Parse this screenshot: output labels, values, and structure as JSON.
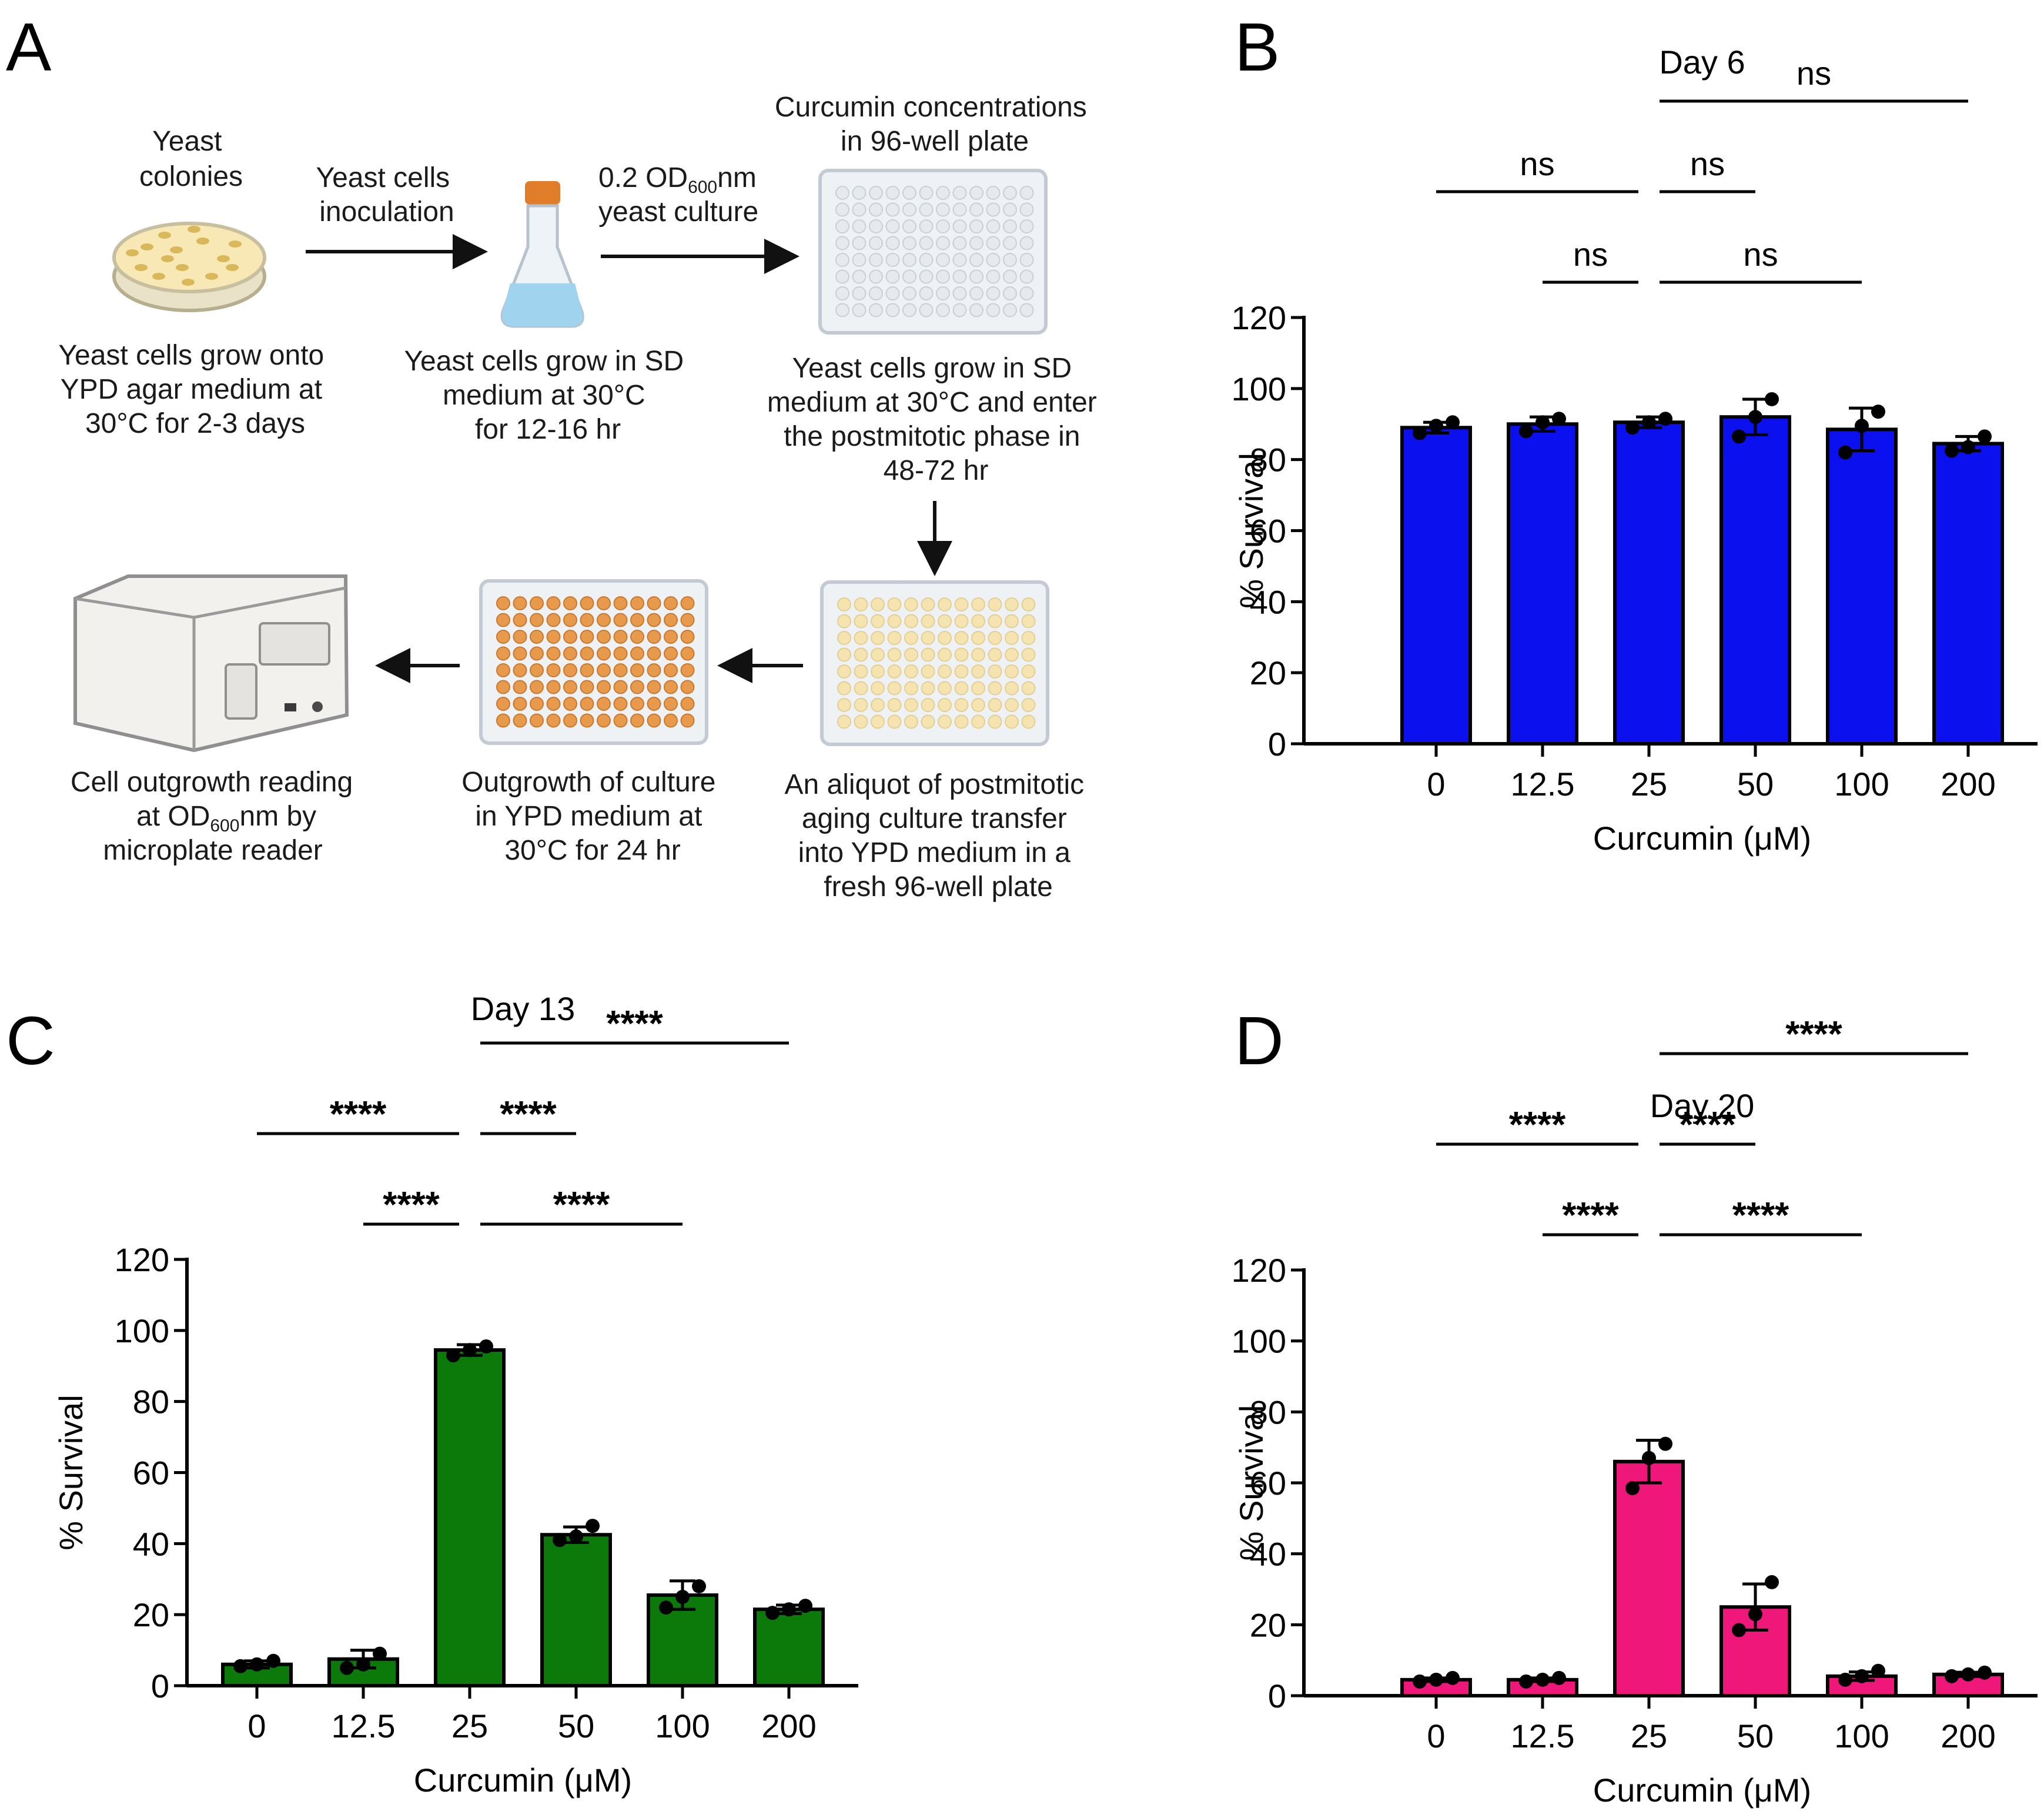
{
  "panel_labels": {
    "A": "A",
    "B": "B",
    "C": "C",
    "D": "D"
  },
  "schematic": {
    "colonies_label": [
      "Yeast",
      "colonies"
    ],
    "colonies_caption": [
      "Yeast cells grow onto",
      "YPD agar medium at",
      "30°C for 2-3 days"
    ],
    "inoculation_label": [
      "Yeast cells",
      "inoculation"
    ],
    "culture_label_line1_main": "0.2 OD",
    "culture_label_line1_sub": "600",
    "culture_label_line1_tail": "nm",
    "culture_label_line2": "yeast culture",
    "flask_caption": [
      "Yeast cells grow in SD",
      "medium at 30°C",
      "for 12-16 hr"
    ],
    "plate_title": [
      "Curcumin concentrations",
      "in 96-well plate"
    ],
    "plate_caption": [
      "Yeast cells grow in SD",
      "medium at 30°C and enter",
      "the postmitotic phase in",
      "48-72 hr"
    ],
    "aliquot_caption": [
      "An aliquot of postmitotic",
      "aging culture transfer",
      "into YPD medium in a",
      "fresh 96-well plate"
    ],
    "outgrowth_caption": [
      "Outgrowth of culture",
      "in YPD medium at",
      "30°C for 24 hr"
    ],
    "reader_caption_line1": "Cell outgrowth reading",
    "reader_caption_line2_main": "at OD",
    "reader_caption_line2_sub": "600",
    "reader_caption_line2_tail": "nm by",
    "reader_caption_line3": "microplate reader",
    "colors": {
      "agar": "#f7e8b5",
      "colony": "#d8b85a",
      "flask_cap": "#e07d2a",
      "liquid": "#9fd3ee",
      "plate_empty": "#c9cfd6",
      "plate_pale": "#f6e4b0",
      "plate_orange": "#e89a4c"
    }
  },
  "chart_data": [
    {
      "panel": "B",
      "type": "bar",
      "title": "Day 6",
      "xlabel": "Curcumin (μM)",
      "ylabel": "% Survival",
      "categories": [
        "0",
        "12.5",
        "25",
        "50",
        "100",
        "200"
      ],
      "values": [
        89,
        90,
        90.5,
        92,
        88.5,
        84.5
      ],
      "sd": [
        1.5,
        2,
        1.5,
        5,
        6,
        2
      ],
      "points": [
        [
          87.5,
          89.5,
          90.5
        ],
        [
          88,
          90.5,
          91.5
        ],
        [
          89,
          90.5,
          91.5
        ],
        [
          86.5,
          92,
          97
        ],
        [
          82,
          89.5,
          93.5
        ],
        [
          82.5,
          83.5,
          86.5
        ]
      ],
      "ylim": [
        0,
        120
      ],
      "yticks": [
        0,
        20,
        40,
        60,
        80,
        100,
        120
      ],
      "color": "#0a10ee",
      "comparisons": [
        {
          "from": "12.5",
          "to": "25",
          "label": "ns"
        },
        {
          "from": "25",
          "to": "50",
          "label": "ns"
        },
        {
          "from": "0",
          "to": "25",
          "label": "ns"
        },
        {
          "from": "25",
          "to": "100",
          "label": "ns"
        },
        {
          "from": "25",
          "to": "200",
          "label": "ns"
        }
      ]
    },
    {
      "panel": "C",
      "type": "bar",
      "title": "Day 13",
      "xlabel": "Curcumin (μM)",
      "ylabel": "% Survival",
      "categories": [
        "0",
        "12.5",
        "25",
        "50",
        "100",
        "200"
      ],
      "values": [
        6,
        7.5,
        94.5,
        42.5,
        25.5,
        21.5
      ],
      "sd": [
        1,
        2.5,
        1.5,
        2.2,
        4,
        1.2
      ],
      "points": [
        [
          5.5,
          6,
          7
        ],
        [
          5,
          6,
          9
        ],
        [
          93,
          94.5,
          95.5
        ],
        [
          41,
          42,
          45
        ],
        [
          22,
          25,
          28
        ],
        [
          20.5,
          21.5,
          22.5
        ]
      ],
      "ylim": [
        0,
        120
      ],
      "yticks": [
        0,
        20,
        40,
        60,
        80,
        100,
        120
      ],
      "color": "#0b7a0b",
      "comparisons": [
        {
          "from": "12.5",
          "to": "25",
          "label": "****"
        },
        {
          "from": "25",
          "to": "100",
          "label": "****"
        },
        {
          "from": "0",
          "to": "25",
          "label": "****"
        },
        {
          "from": "25",
          "to": "50",
          "label": "****"
        },
        {
          "from": "25",
          "to": "200",
          "label": "****"
        }
      ]
    },
    {
      "panel": "D",
      "type": "bar",
      "title": "Day 20",
      "xlabel": "Curcumin (μM)",
      "ylabel": "% Survival",
      "categories": [
        "0",
        "12.5",
        "25",
        "50",
        "100",
        "200"
      ],
      "values": [
        4.5,
        4.5,
        66,
        25,
        5.5,
        6
      ],
      "sd": [
        0.5,
        0.5,
        6,
        6.5,
        1.2,
        0.6
      ],
      "points": [
        [
          4,
          4.5,
          5
        ],
        [
          4,
          4.5,
          5
        ],
        [
          58.5,
          67,
          71
        ],
        [
          18.5,
          23,
          32
        ],
        [
          4.5,
          5.5,
          7
        ],
        [
          5.5,
          6,
          6.5
        ]
      ],
      "ylim": [
        0,
        120
      ],
      "yticks": [
        0,
        20,
        40,
        60,
        80,
        100,
        120
      ],
      "color": "#f0177b",
      "comparisons": [
        {
          "from": "12.5",
          "to": "25",
          "label": "****"
        },
        {
          "from": "25",
          "to": "100",
          "label": "****"
        },
        {
          "from": "0",
          "to": "25",
          "label": "****"
        },
        {
          "from": "25",
          "to": "50",
          "label": "****"
        },
        {
          "from": "25",
          "to": "200",
          "label": "****"
        }
      ]
    }
  ]
}
